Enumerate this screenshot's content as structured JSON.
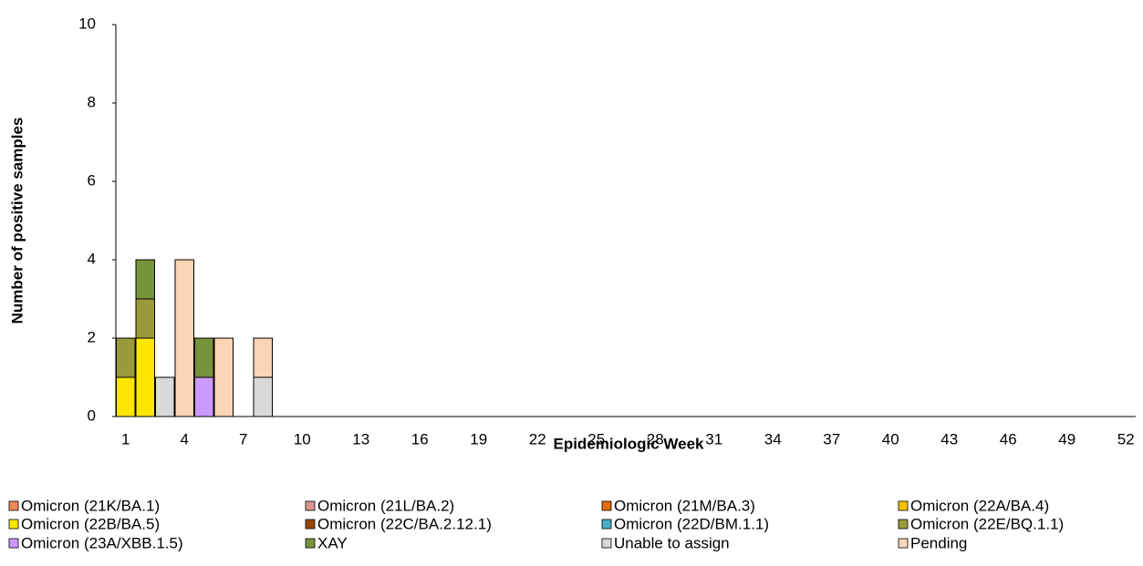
{
  "chart_data": {
    "type": "stacked_bar",
    "x_label": "Epidemiologic Week",
    "y_label": "Number of positive samples",
    "categories": [
      1,
      null,
      null,
      4,
      null,
      null,
      7,
      null,
      null,
      10,
      null,
      null,
      13,
      null,
      null,
      16,
      null,
      null,
      19,
      null,
      null,
      22,
      null,
      null,
      25,
      null,
      null,
      28,
      null,
      null,
      31,
      null,
      null,
      34,
      null,
      null,
      37,
      null,
      null,
      40,
      null,
      null,
      43,
      null,
      null,
      46,
      null,
      null,
      49,
      null,
      null,
      52
    ],
    "ylim": [
      0,
      10
    ],
    "yticks": [
      0,
      2,
      4,
      6,
      8,
      10
    ],
    "series": [
      {
        "name": "Omicron (21K/BA.1)",
        "color": "#f0885a",
        "values": [
          0,
          0,
          0,
          0,
          0,
          0,
          0,
          0,
          0,
          0,
          0,
          0,
          0,
          0,
          0,
          0,
          0,
          0,
          0,
          0,
          0,
          0,
          0,
          0,
          0,
          0,
          0,
          0,
          0,
          0,
          0,
          0,
          0,
          0,
          0,
          0,
          0,
          0,
          0,
          0,
          0,
          0,
          0,
          0,
          0,
          0,
          0,
          0,
          0,
          0,
          0,
          0
        ]
      },
      {
        "name": "Omicron (21L/BA.2)",
        "color": "#d99694",
        "values": [
          0,
          0,
          0,
          0,
          0,
          0,
          0,
          0,
          0,
          0,
          0,
          0,
          0,
          0,
          0,
          0,
          0,
          0,
          0,
          0,
          0,
          0,
          0,
          0,
          0,
          0,
          0,
          0,
          0,
          0,
          0,
          0,
          0,
          0,
          0,
          0,
          0,
          0,
          0,
          0,
          0,
          0,
          0,
          0,
          0,
          0,
          0,
          0,
          0,
          0,
          0,
          0
        ]
      },
      {
        "name": "Omicron (21M/BA.3)",
        "color": "#e46c0a",
        "values": [
          0,
          0,
          0,
          0,
          0,
          0,
          0,
          0,
          0,
          0,
          0,
          0,
          0,
          0,
          0,
          0,
          0,
          0,
          0,
          0,
          0,
          0,
          0,
          0,
          0,
          0,
          0,
          0,
          0,
          0,
          0,
          0,
          0,
          0,
          0,
          0,
          0,
          0,
          0,
          0,
          0,
          0,
          0,
          0,
          0,
          0,
          0,
          0,
          0,
          0,
          0,
          0
        ]
      },
      {
        "name": "Omicron (22A/BA.4)",
        "color": "#ffc000",
        "values": [
          0,
          0,
          0,
          0,
          0,
          0,
          0,
          0,
          0,
          0,
          0,
          0,
          0,
          0,
          0,
          0,
          0,
          0,
          0,
          0,
          0,
          0,
          0,
          0,
          0,
          0,
          0,
          0,
          0,
          0,
          0,
          0,
          0,
          0,
          0,
          0,
          0,
          0,
          0,
          0,
          0,
          0,
          0,
          0,
          0,
          0,
          0,
          0,
          0,
          0,
          0,
          0
        ]
      },
      {
        "name": "Omicron (22B/BA.5)",
        "color": "#ffe600",
        "values": [
          1,
          2,
          0,
          0,
          0,
          0,
          0,
          0,
          0,
          0,
          0,
          0,
          0,
          0,
          0,
          0,
          0,
          0,
          0,
          0,
          0,
          0,
          0,
          0,
          0,
          0,
          0,
          0,
          0,
          0,
          0,
          0,
          0,
          0,
          0,
          0,
          0,
          0,
          0,
          0,
          0,
          0,
          0,
          0,
          0,
          0,
          0,
          0,
          0,
          0,
          0,
          0
        ]
      },
      {
        "name": "Omicron (22C/BA.2.12.1)",
        "color": "#974806",
        "values": [
          0,
          0,
          0,
          0,
          0,
          0,
          0,
          0,
          0,
          0,
          0,
          0,
          0,
          0,
          0,
          0,
          0,
          0,
          0,
          0,
          0,
          0,
          0,
          0,
          0,
          0,
          0,
          0,
          0,
          0,
          0,
          0,
          0,
          0,
          0,
          0,
          0,
          0,
          0,
          0,
          0,
          0,
          0,
          0,
          0,
          0,
          0,
          0,
          0,
          0,
          0,
          0
        ]
      },
      {
        "name": "Omicron (22D/BM.1.1)",
        "color": "#4bacc6",
        "values": [
          0,
          0,
          0,
          0,
          0,
          0,
          0,
          0,
          0,
          0,
          0,
          0,
          0,
          0,
          0,
          0,
          0,
          0,
          0,
          0,
          0,
          0,
          0,
          0,
          0,
          0,
          0,
          0,
          0,
          0,
          0,
          0,
          0,
          0,
          0,
          0,
          0,
          0,
          0,
          0,
          0,
          0,
          0,
          0,
          0,
          0,
          0,
          0,
          0,
          0,
          0,
          0
        ]
      },
      {
        "name": "Omicron (22E/BQ.1.1)",
        "color": "#9a9a3a",
        "values": [
          1,
          1,
          0,
          0,
          0,
          0,
          0,
          0,
          0,
          0,
          0,
          0,
          0,
          0,
          0,
          0,
          0,
          0,
          0,
          0,
          0,
          0,
          0,
          0,
          0,
          0,
          0,
          0,
          0,
          0,
          0,
          0,
          0,
          0,
          0,
          0,
          0,
          0,
          0,
          0,
          0,
          0,
          0,
          0,
          0,
          0,
          0,
          0,
          0,
          0,
          0,
          0
        ]
      },
      {
        "name": "Omicron (23A/XBB.1.5)",
        "color": "#cc99ff",
        "values": [
          0,
          0,
          0,
          0,
          1,
          0,
          0,
          0,
          0,
          0,
          0,
          0,
          0,
          0,
          0,
          0,
          0,
          0,
          0,
          0,
          0,
          0,
          0,
          0,
          0,
          0,
          0,
          0,
          0,
          0,
          0,
          0,
          0,
          0,
          0,
          0,
          0,
          0,
          0,
          0,
          0,
          0,
          0,
          0,
          0,
          0,
          0,
          0,
          0,
          0,
          0,
          0
        ]
      },
      {
        "name": "XAY",
        "color": "#77933c",
        "values": [
          0,
          1,
          0,
          0,
          1,
          0,
          0,
          0,
          0,
          0,
          0,
          0,
          0,
          0,
          0,
          0,
          0,
          0,
          0,
          0,
          0,
          0,
          0,
          0,
          0,
          0,
          0,
          0,
          0,
          0,
          0,
          0,
          0,
          0,
          0,
          0,
          0,
          0,
          0,
          0,
          0,
          0,
          0,
          0,
          0,
          0,
          0,
          0,
          0,
          0,
          0,
          0
        ]
      },
      {
        "name": "Unable to assign",
        "color": "#d9d9d9",
        "values": [
          0,
          0,
          1,
          0,
          0,
          0,
          0,
          1,
          0,
          0,
          0,
          0,
          0,
          0,
          0,
          0,
          0,
          0,
          0,
          0,
          0,
          0,
          0,
          0,
          0,
          0,
          0,
          0,
          0,
          0,
          0,
          0,
          0,
          0,
          0,
          0,
          0,
          0,
          0,
          0,
          0,
          0,
          0,
          0,
          0,
          0,
          0,
          0,
          0,
          0,
          0,
          0
        ]
      },
      {
        "name": "Pending",
        "color": "#fbd5b5",
        "values": [
          0,
          0,
          0,
          4,
          0,
          2,
          0,
          1,
          0,
          0,
          0,
          0,
          0,
          0,
          0,
          0,
          0,
          0,
          0,
          0,
          0,
          0,
          0,
          0,
          0,
          0,
          0,
          0,
          0,
          0,
          0,
          0,
          0,
          0,
          0,
          0,
          0,
          0,
          0,
          0,
          0,
          0,
          0,
          0,
          0,
          0,
          0,
          0,
          0,
          0,
          0,
          0
        ]
      }
    ]
  }
}
